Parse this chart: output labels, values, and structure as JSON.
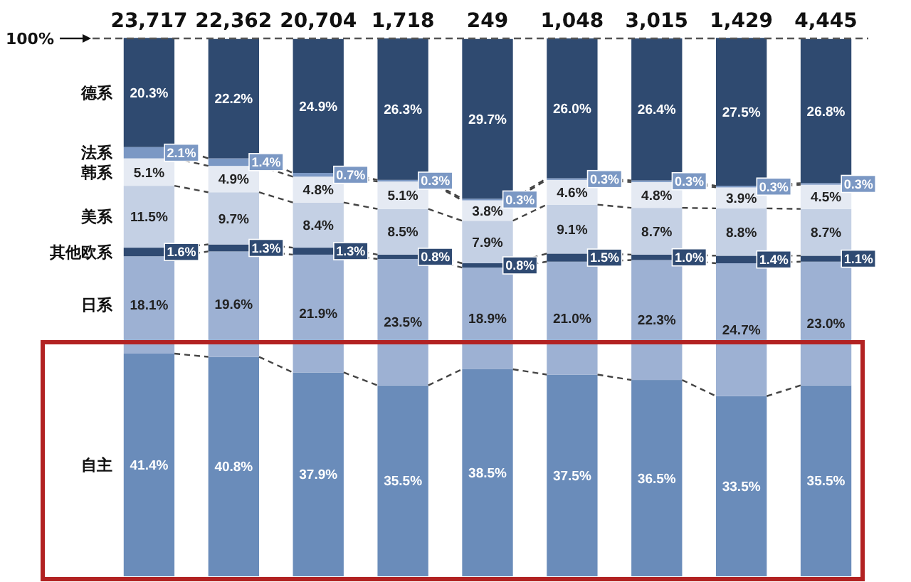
{
  "chart_data": {
    "type": "bar",
    "stacked": true,
    "legend": "left",
    "tick_labels": false,
    "categories": [
      null,
      null,
      null,
      null,
      null,
      null,
      null,
      null,
      null
    ],
    "ylim": [
      0,
      100
    ],
    "series": [
      {
        "name": "自主",
        "color": "#6a8cba",
        "values": [
          41.4,
          40.8,
          37.9,
          35.5,
          38.5,
          37.5,
          36.5,
          33.5,
          35.5
        ],
        "value_labels": [
          "41.4%",
          "40.8%",
          "37.9%",
          "35.5%",
          "38.5%",
          "37.5%",
          "36.5%",
          "33.5%",
          "35.5%"
        ]
      },
      {
        "name": "日系",
        "color": "#9db1d3",
        "values": [
          18.1,
          19.6,
          21.9,
          23.5,
          18.9,
          21.0,
          22.3,
          24.7,
          23.0
        ],
        "value_labels": [
          "18.1%",
          "19.6%",
          "21.9%",
          "23.5%",
          "18.9%",
          "21.0%",
          "22.3%",
          "24.7%",
          "23.0%"
        ]
      },
      {
        "name": "其他欧系",
        "color": "#2f4a72",
        "values": [
          1.6,
          1.3,
          1.3,
          0.8,
          0.8,
          1.5,
          1.0,
          1.4,
          1.1
        ],
        "value_labels": [
          "1.6%",
          "1.3%",
          "1.3%",
          "0.8%",
          "0.8%",
          "1.5%",
          "1.0%",
          "1.4%",
          "1.1%"
        ]
      },
      {
        "name": "美系",
        "color": "#c4d0e4",
        "values": [
          11.5,
          9.7,
          8.4,
          8.5,
          7.9,
          9.1,
          8.7,
          8.8,
          8.7
        ],
        "value_labels": [
          "11.5%",
          "9.7%",
          "8.4%",
          "8.5%",
          "7.9%",
          "9.1%",
          "8.7%",
          "8.8%",
          "8.7%"
        ]
      },
      {
        "name": "韩系",
        "color": "#e5eaf3",
        "values": [
          5.1,
          4.9,
          4.8,
          5.1,
          3.8,
          4.6,
          4.8,
          3.9,
          4.5
        ],
        "value_labels": [
          "5.1%",
          "4.9%",
          "4.8%",
          "5.1%",
          "3.8%",
          "4.6%",
          "4.8%",
          "3.9%",
          "4.5%"
        ]
      },
      {
        "name": "法系",
        "color": "#7b98c4",
        "values": [
          2.1,
          1.4,
          0.7,
          0.3,
          0.3,
          0.3,
          0.3,
          0.3,
          0.3
        ],
        "value_labels": [
          "2.1%",
          "1.4%",
          "0.7%",
          "0.3%",
          "0.3%",
          "0.3%",
          "0.3%",
          "0.3%",
          "0.3%"
        ]
      },
      {
        "name": "德系",
        "color": "#2f4a70",
        "values": [
          20.3,
          22.2,
          24.9,
          26.3,
          29.7,
          26.0,
          26.4,
          27.5,
          26.8
        ],
        "value_labels": [
          "20.3%",
          "22.2%",
          "24.9%",
          "26.3%",
          "29.7%",
          "26.0%",
          "26.4%",
          "27.5%",
          "26.8%"
        ]
      }
    ],
    "annotations": [
      "23,717",
      "22,362",
      "20,704",
      "1,718",
      "249",
      "1,048",
      "3,015",
      "1,429",
      "4,445"
    ],
    "ref_lines": [
      {
        "axis": "y",
        "value": 100,
        "label": "100%",
        "line_style": "dashed",
        "color": "#555555"
      }
    ]
  }
}
